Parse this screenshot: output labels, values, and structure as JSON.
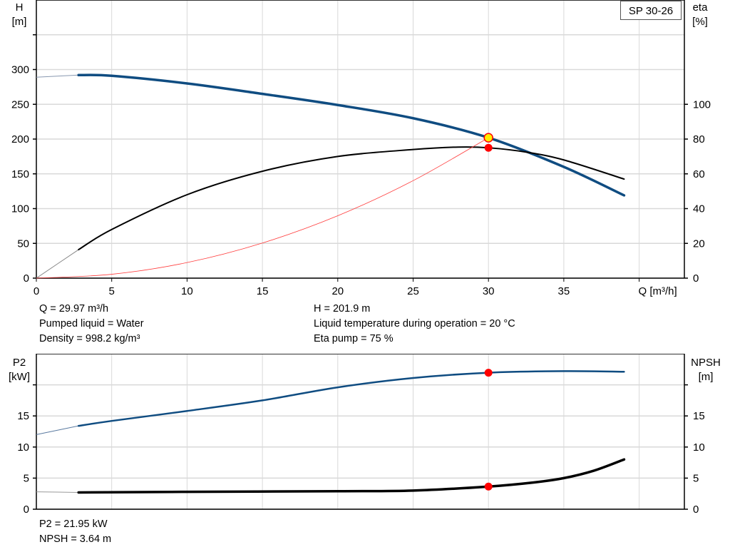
{
  "model_label": "SP 30-26",
  "info": {
    "top_left": [
      "Q = 29.97 m³/h",
      "Pumped liquid = Water",
      "Density = 998.2 kg/m³"
    ],
    "top_right": [
      "H = 201.9 m",
      "Liquid temperature during operation = 20 °C",
      "Eta pump = 75 %"
    ],
    "bottom_left": [
      "P2 = 21.95 kW",
      "NPSH = 3.64 m"
    ]
  },
  "colors": {
    "head": "#0f4c81",
    "eta": "#000000",
    "system": "#ff3b3b",
    "duty_point": "#ff0000",
    "duty_fill": "#ffee00",
    "grid": "#d9d9d9"
  },
  "chart_data": [
    {
      "type": "line",
      "xlabel": "Q [m³/h]",
      "ylabel": "H\n[m]",
      "y2label": "eta\n[%]",
      "xlim": [
        0,
        43
      ],
      "ylim": [
        0,
        400
      ],
      "y2lim": [
        0,
        160
      ],
      "xticks": [
        0,
        5,
        10,
        15,
        20,
        25,
        30,
        35
      ],
      "yticks": [
        0,
        50,
        100,
        150,
        200,
        250,
        300
      ],
      "ygrid": [
        0,
        50,
        100,
        150,
        200,
        250,
        300,
        350
      ],
      "y2ticks": [
        0,
        20,
        40,
        60,
        80,
        100
      ],
      "xgrid": [
        0,
        5,
        10,
        15,
        20,
        25,
        30,
        35,
        40
      ],
      "grid": true,
      "series": [
        {
          "id": "head",
          "axis": "y",
          "thin_until": 2.8,
          "x": [
            0,
            2.8,
            5,
            10,
            15,
            20,
            25,
            30,
            35,
            39
          ],
          "y": [
            289,
            292,
            291,
            280,
            265,
            249,
            230,
            202,
            160,
            119
          ]
        },
        {
          "id": "eta",
          "axis": "y2",
          "thin_until": 2.8,
          "x": [
            0,
            2.8,
            5,
            10,
            15,
            20,
            25,
            28,
            30,
            32.5,
            35,
            39
          ],
          "y": [
            0,
            16.4,
            28,
            48,
            61.5,
            70,
            74,
            75.4,
            75,
            72.5,
            68,
            57
          ]
        },
        {
          "id": "system",
          "axis": "y",
          "x": [
            0,
            5,
            10,
            15,
            20,
            25,
            30
          ],
          "y": [
            0,
            5.6,
            22.4,
            50.5,
            89.7,
            140.2,
            201.9
          ]
        }
      ],
      "points": [
        {
          "id": "duty-head",
          "axis": "y",
          "x": 30,
          "y": 201.9,
          "style": "yellow"
        },
        {
          "id": "duty-eta",
          "axis": "y2",
          "x": 30,
          "y": 75,
          "style": "red"
        }
      ]
    },
    {
      "type": "line",
      "ylabel": "P2\n[kW]",
      "y2label": "NPSH\n[m]",
      "xlim": [
        0,
        43
      ],
      "ylim": [
        0,
        25
      ],
      "y2lim": [
        0,
        25
      ],
      "yticks": [
        0,
        5,
        10,
        15
      ],
      "ygrid": [
        0,
        5,
        10,
        15,
        20
      ],
      "y2ticks": [
        0,
        5,
        10,
        15
      ],
      "xgrid": [
        0,
        5,
        10,
        15,
        20,
        25,
        30,
        35,
        40
      ],
      "grid": true,
      "series": [
        {
          "id": "p2",
          "axis": "y",
          "thin_until": 2.8,
          "x": [
            0,
            2.8,
            5,
            10,
            15,
            20,
            25,
            30,
            35,
            39
          ],
          "y": [
            12.0,
            13.4,
            14.2,
            15.8,
            17.5,
            19.6,
            21.1,
            21.95,
            22.2,
            22.1
          ]
        },
        {
          "id": "npsh",
          "axis": "y2",
          "thin_until": 2.8,
          "x": [
            0,
            2.8,
            10,
            20,
            25,
            30,
            33,
            35,
            37,
            39
          ],
          "y": [
            2.8,
            2.7,
            2.8,
            2.9,
            3.0,
            3.64,
            4.3,
            5.0,
            6.2,
            8.0
          ]
        }
      ],
      "points": [
        {
          "id": "duty-p2",
          "axis": "y",
          "x": 30,
          "y": 21.95,
          "style": "red"
        },
        {
          "id": "duty-npsh",
          "axis": "y2",
          "x": 30,
          "y": 3.64,
          "style": "red"
        }
      ]
    }
  ]
}
